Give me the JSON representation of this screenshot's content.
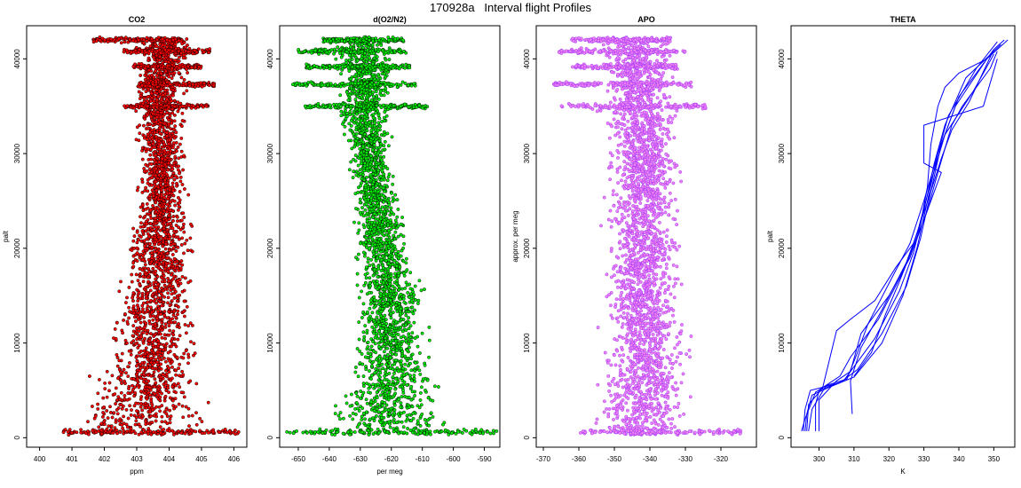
{
  "page": {
    "title": "170928a   Interval flight Profiles"
  },
  "colors": {
    "co2": "#ff0000",
    "o2n2": "#00ee00",
    "apo": "#ee82ee",
    "theta": "#0000ff",
    "outline": "#000000"
  },
  "chart_data": [
    {
      "type": "scatter",
      "title": "CO2",
      "xlabel": "ppm",
      "ylabel": "palt",
      "xlim": [
        399.6,
        406.4
      ],
      "ylim": [
        -1000,
        43500
      ],
      "xticks": [
        400,
        401,
        402,
        403,
        404,
        405,
        406
      ],
      "yticks": [
        0,
        10000,
        20000,
        30000,
        40000
      ],
      "fill_color": "#ff0000",
      "point_outline": "#000000",
      "profile": [
        [
          400,
          403.0,
          1.55
        ],
        [
          1500,
          403.1,
          1.45
        ],
        [
          3000,
          403.2,
          1.3
        ],
        [
          5000,
          403.3,
          1.1
        ],
        [
          7500,
          403.4,
          0.95
        ],
        [
          10000,
          403.5,
          0.9
        ],
        [
          15000,
          403.6,
          0.8
        ],
        [
          20000,
          403.7,
          0.7
        ],
        [
          25000,
          403.8,
          0.55
        ],
        [
          30000,
          403.8,
          0.45
        ],
        [
          35000,
          403.7,
          0.55
        ],
        [
          38000,
          403.8,
          0.5
        ],
        [
          42000,
          403.9,
          0.6
        ]
      ],
      "horizontal_bands": [
        [
          600,
          400.6,
          406.2
        ],
        [
          35000,
          402.6,
          405.2
        ],
        [
          37300,
          403.0,
          405.4
        ],
        [
          39200,
          402.9,
          405.0
        ],
        [
          40800,
          402.6,
          405.3
        ],
        [
          42000,
          401.6,
          404.4
        ]
      ]
    },
    {
      "type": "scatter",
      "title": "d(O2/N2)",
      "xlabel": "per meg",
      "ylabel": "",
      "xlim": [
        -656,
        -585
      ],
      "ylim": [
        -1000,
        43500
      ],
      "xticks": [
        -650,
        -640,
        -630,
        -620,
        -610,
        -600,
        -590
      ],
      "yticks": [
        0,
        10000,
        20000,
        30000,
        40000
      ],
      "fill_color": "#00ee00",
      "point_outline": "#000000",
      "profile": [
        [
          400,
          -622,
          16
        ],
        [
          1500,
          -622,
          14
        ],
        [
          3000,
          -621,
          12
        ],
        [
          5000,
          -620,
          10
        ],
        [
          7500,
          -620,
          9
        ],
        [
          10000,
          -620,
          8
        ],
        [
          15000,
          -621,
          7
        ],
        [
          20000,
          -623,
          6
        ],
        [
          25000,
          -625,
          5
        ],
        [
          30000,
          -627,
          4.5
        ],
        [
          35000,
          -629,
          5.5
        ],
        [
          38000,
          -628,
          6
        ],
        [
          42000,
          -630,
          6.5
        ]
      ],
      "horizontal_bands": [
        [
          600,
          -654,
          -586
        ],
        [
          35000,
          -648,
          -608
        ],
        [
          37300,
          -652,
          -612
        ],
        [
          39200,
          -648,
          -614
        ],
        [
          40800,
          -650,
          -615
        ],
        [
          42000,
          -642,
          -616
        ]
      ]
    },
    {
      "type": "scatter",
      "title": "APO",
      "xlabel": "",
      "ylabel": "approx. per meg",
      "xlim": [
        -372,
        -310
      ],
      "ylim": [
        -1000,
        43500
      ],
      "xticks": [
        -370,
        -360,
        -350,
        -340,
        -330,
        -320
      ],
      "yticks": [
        0,
        10000,
        20000,
        30000,
        40000
      ],
      "fill_color": "#ee82ee",
      "point_outline": "#9b30ff",
      "profile": [
        [
          400,
          -342,
          10
        ],
        [
          1500,
          -342,
          9.5
        ],
        [
          3000,
          -342,
          9
        ],
        [
          5000,
          -342,
          8.5
        ],
        [
          7500,
          -341,
          8
        ],
        [
          10000,
          -341,
          7.5
        ],
        [
          15000,
          -342,
          7
        ],
        [
          20000,
          -342,
          7
        ],
        [
          25000,
          -342,
          7
        ],
        [
          30000,
          -342,
          6.5
        ],
        [
          35000,
          -343,
          7
        ],
        [
          38000,
          -343,
          7
        ],
        [
          42000,
          -344,
          7
        ]
      ],
      "horizontal_bands": [
        [
          600,
          -360,
          -314
        ],
        [
          35000,
          -365,
          -324
        ],
        [
          37300,
          -368,
          -328
        ],
        [
          39200,
          -362,
          -332
        ],
        [
          40800,
          -366,
          -330
        ],
        [
          42000,
          -362,
          -334
        ]
      ]
    },
    {
      "type": "line",
      "title": "THETA",
      "xlabel": "K",
      "ylabel": "palt",
      "xlim": [
        292,
        356
      ],
      "ylim": [
        -1000,
        43500
      ],
      "xticks": [
        300,
        310,
        320,
        330,
        340,
        350
      ],
      "yticks": [
        0,
        10000,
        20000,
        30000,
        40000
      ],
      "line_color": "#0000ff",
      "series": [
        {
          "points": [
            [
              296,
              700
            ],
            [
              296.5,
              2500
            ],
            [
              298,
              4500
            ],
            [
              304,
              5500
            ],
            [
              310,
              6400
            ],
            [
              318,
              10000
            ],
            [
              324,
              15000
            ],
            [
              328,
              20000
            ],
            [
              331,
              25000
            ],
            [
              334,
              30000
            ],
            [
              339,
              35000
            ],
            [
              348,
              40000
            ],
            [
              354,
              42000
            ]
          ]
        },
        {
          "points": [
            [
              295.5,
              700
            ],
            [
              296,
              3000
            ],
            [
              297.5,
              5000
            ],
            [
              306,
              5800
            ],
            [
              311,
              7200
            ],
            [
              318,
              11000
            ],
            [
              325,
              16000
            ],
            [
              329,
              21000
            ],
            [
              332,
              26000
            ],
            [
              335,
              31000
            ],
            [
              340,
              36000
            ],
            [
              350,
              41000
            ],
            [
              353,
              42000
            ]
          ]
        },
        {
          "points": [
            [
              299,
              700
            ],
            [
              299,
              3500
            ],
            [
              300,
              5000
            ],
            [
              307,
              6000
            ],
            [
              310,
              7500
            ],
            [
              316,
              10500
            ],
            [
              323,
              15500
            ],
            [
              327,
              19500
            ],
            [
              330,
              24000
            ],
            [
              333,
              29000
            ],
            [
              336,
              33000
            ],
            [
              342,
              38000
            ],
            [
              352,
              41500
            ]
          ]
        },
        {
          "points": [
            [
              297,
              700
            ],
            [
              298,
              3000
            ],
            [
              302,
              5500
            ],
            [
              308,
              6200
            ],
            [
              311,
              9000
            ],
            [
              314,
              12000
            ],
            [
              321,
              17000
            ],
            [
              326,
              20500
            ],
            [
              330,
              25000
            ],
            [
              334,
              30000
            ],
            [
              337,
              34000
            ],
            [
              345,
              39000
            ],
            [
              351,
              41800
            ]
          ]
        },
        {
          "points": [
            [
              295,
              700
            ],
            [
              296,
              2000
            ],
            [
              299,
              4800
            ],
            [
              306,
              6500
            ],
            [
              309,
              8500
            ],
            [
              317,
              12500
            ],
            [
              324,
              17500
            ],
            [
              328,
              21500
            ],
            [
              332,
              27000
            ],
            [
              336,
              32000
            ],
            [
              344,
              36500
            ],
            [
              350,
              40500
            ]
          ]
        },
        {
          "points": [
            [
              300,
              700
            ],
            [
              300,
              4000
            ],
            [
              305,
              6000
            ],
            [
              309,
              7000
            ],
            [
              312,
              11000
            ],
            [
              320,
              15000
            ],
            [
              326,
              19000
            ],
            [
              331,
              24000
            ],
            [
              334,
              28000
            ],
            [
              338,
              33000
            ],
            [
              341,
              35000
            ],
            [
              349,
              39000
            ],
            [
              351,
              40800
            ]
          ]
        },
        {
          "points": [
            [
              309.5,
              2500
            ],
            [
              309,
              6000
            ],
            [
              312,
              9500
            ],
            [
              318,
              13500
            ],
            [
              325,
              18500
            ],
            [
              329,
              22500
            ],
            [
              331,
              26500
            ],
            [
              332,
              31000
            ],
            [
              334,
              35000
            ],
            [
              336,
              37000
            ],
            [
              340,
              38500
            ],
            [
              348,
              40000
            ]
          ]
        },
        {
          "points": [
            [
              296.5,
              700
            ],
            [
              297,
              3500
            ],
            [
              301,
              5200
            ],
            [
              305,
              11300
            ],
            [
              309,
              12500
            ],
            [
              316,
              14500
            ],
            [
              322,
              18000
            ],
            [
              327,
              20500
            ],
            [
              332,
              26000
            ],
            [
              335,
              29500
            ],
            [
              338,
              32500
            ],
            [
              343,
              35500
            ],
            [
              350,
              41000
            ]
          ]
        },
        {
          "points": [
            [
              310,
              6500
            ],
            [
              315,
              9000
            ],
            [
              319,
              13000
            ],
            [
              323,
              16500
            ],
            [
              330,
              23000
            ],
            [
              335,
              28000
            ],
            [
              330,
              29000
            ],
            [
              330,
              33000
            ],
            [
              347,
              35000
            ],
            [
              351,
              40000
            ]
          ]
        }
      ]
    }
  ]
}
